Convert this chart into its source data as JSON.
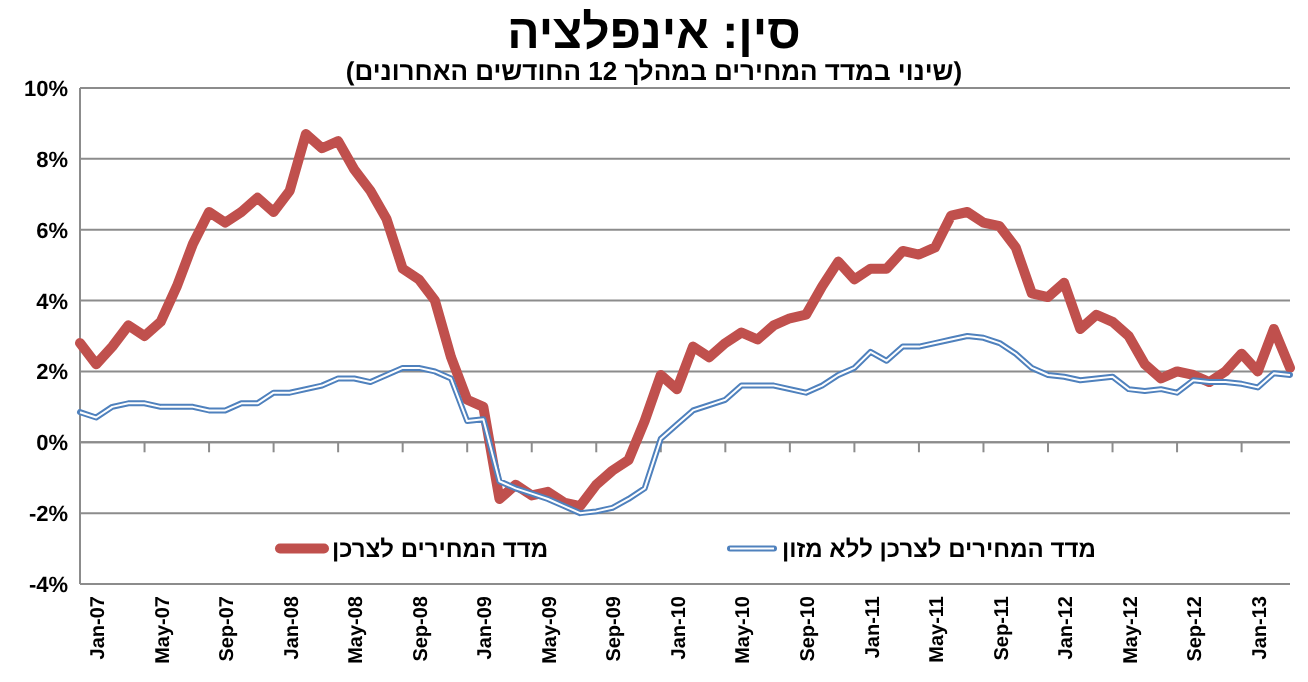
{
  "chart_data": {
    "type": "line",
    "title": "סין: אינפלציה",
    "subtitle": "(שינוי במדד המחירים במהלך 12 החודשים האחרונים)",
    "categories": [
      null,
      "Jan-07",
      null,
      null,
      null,
      "May-07",
      null,
      null,
      null,
      "Sep-07",
      null,
      null,
      null,
      "Jan-08",
      null,
      null,
      null,
      "May-08",
      null,
      null,
      null,
      "Sep-08",
      null,
      null,
      null,
      "Jan-09",
      null,
      null,
      null,
      "May-09",
      null,
      null,
      null,
      "Sep-09",
      null,
      null,
      null,
      "Jan-10",
      null,
      null,
      null,
      "May-10",
      null,
      null,
      null,
      "Sep-10",
      null,
      null,
      null,
      "Jan-11",
      null,
      null,
      null,
      "May-11",
      null,
      null,
      null,
      "Sep-11",
      null,
      null,
      null,
      "Jan-12",
      null,
      null,
      null,
      "May-12",
      null,
      null,
      null,
      "Sep-12",
      null,
      null,
      null,
      "Jan-13",
      null,
      null
    ],
    "series": [
      {
        "name": "מדד המחירים לצרכן",
        "color": "#c0504d",
        "values": [
          2.8,
          2.2,
          2.7,
          3.3,
          3.0,
          3.4,
          4.4,
          5.6,
          6.5,
          6.2,
          6.5,
          6.9,
          6.5,
          7.1,
          8.7,
          8.3,
          8.5,
          7.7,
          7.1,
          6.3,
          4.9,
          4.6,
          4.0,
          2.4,
          1.2,
          1.0,
          -1.6,
          -1.2,
          -1.5,
          -1.4,
          -1.7,
          -1.8,
          -1.2,
          -0.8,
          -0.5,
          0.6,
          1.9,
          1.5,
          2.7,
          2.4,
          2.8,
          3.1,
          2.9,
          3.3,
          3.5,
          3.6,
          4.4,
          5.1,
          4.6,
          4.9,
          4.9,
          5.4,
          5.3,
          5.5,
          6.4,
          6.5,
          6.2,
          6.1,
          5.5,
          4.2,
          4.1,
          4.5,
          3.2,
          3.6,
          3.4,
          3.0,
          2.2,
          1.8,
          2.0,
          1.9,
          1.7,
          2.0,
          2.5,
          2.0,
          3.2,
          2.1
        ]
      },
      {
        "name": "מדד המחירים לצרכן ללא מזון",
        "color": "#4f81bd",
        "values": [
          0.85,
          0.7,
          1.0,
          1.1,
          1.1,
          1.0,
          1.0,
          1.0,
          0.9,
          0.9,
          1.1,
          1.1,
          1.4,
          1.4,
          1.5,
          1.6,
          1.8,
          1.8,
          1.7,
          1.9,
          2.1,
          2.1,
          2.0,
          1.8,
          0.6,
          0.65,
          -1.1,
          -1.3,
          -1.45,
          -1.6,
          -1.8,
          -2.0,
          -1.95,
          -1.85,
          -1.6,
          -1.3,
          0.1,
          0.5,
          0.9,
          1.05,
          1.2,
          1.6,
          1.6,
          1.6,
          1.5,
          1.4,
          1.6,
          1.9,
          2.1,
          2.55,
          2.3,
          2.7,
          2.7,
          2.8,
          2.9,
          3.0,
          2.95,
          2.8,
          2.5,
          2.1,
          1.9,
          1.85,
          1.75,
          1.8,
          1.85,
          1.5,
          1.45,
          1.5,
          1.4,
          1.75,
          1.7,
          1.7,
          1.65,
          1.55,
          1.95,
          1.9
        ]
      }
    ],
    "ylim": [
      -4,
      10
    ],
    "yticks": [
      {
        "value": -4,
        "label": "-4%"
      },
      {
        "value": -2,
        "label": "-2%"
      },
      {
        "value": 0,
        "label": "0%"
      },
      {
        "value": 2,
        "label": "2%"
      },
      {
        "value": 4,
        "label": "4%"
      },
      {
        "value": 6,
        "label": "6%"
      },
      {
        "value": 8,
        "label": "8%"
      },
      {
        "value": 10,
        "label": "10%"
      }
    ],
    "grid": "y",
    "legend": "bottom",
    "marker": "none",
    "line_style": "solid"
  }
}
